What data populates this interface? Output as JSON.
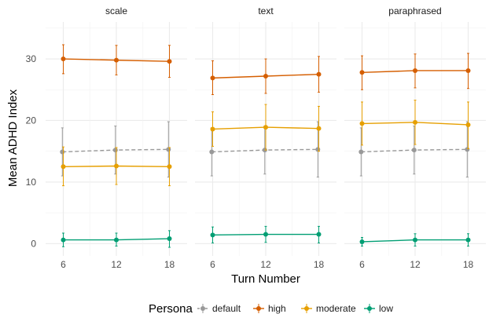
{
  "chart_data": {
    "type": "line",
    "xlabel": "Turn Number",
    "ylabel": "Mean ADHD Index",
    "x": [
      6,
      12,
      18
    ],
    "xlim": [
      4,
      20
    ],
    "ylim": [
      -2,
      36
    ],
    "y_ticks": [
      0,
      10,
      20,
      30
    ],
    "grid": true,
    "legend": {
      "title": "Persona",
      "position": "bottom",
      "entries": [
        {
          "name": "default",
          "color": "#999999",
          "dashed": true
        },
        {
          "name": "high",
          "color": "#D55E00",
          "dashed": false
        },
        {
          "name": "moderate",
          "color": "#E69F00",
          "dashed": false
        },
        {
          "name": "low",
          "color": "#009E73",
          "dashed": false
        }
      ]
    },
    "panels": [
      {
        "title": "scale",
        "series": [
          {
            "name": "default",
            "values": [
              14.9,
              15.2,
              15.3
            ],
            "err_low": [
              11.0,
              11.3,
              10.8
            ],
            "err_high": [
              18.8,
              19.1,
              19.8
            ]
          },
          {
            "name": "high",
            "values": [
              30.0,
              29.8,
              29.6
            ],
            "err_low": [
              27.6,
              27.4,
              27.0
            ],
            "err_high": [
              32.3,
              32.2,
              32.2
            ]
          },
          {
            "name": "moderate",
            "values": [
              12.5,
              12.6,
              12.5
            ],
            "err_low": [
              9.4,
              9.6,
              9.4
            ],
            "err_high": [
              15.7,
              15.6,
              15.6
            ]
          },
          {
            "name": "low",
            "values": [
              0.6,
              0.6,
              0.8
            ],
            "err_low": [
              -0.5,
              -0.4,
              -0.6
            ],
            "err_high": [
              1.7,
              1.7,
              2.1
            ]
          }
        ]
      },
      {
        "title": "text",
        "series": [
          {
            "name": "default",
            "values": [
              14.9,
              15.2,
              15.3
            ],
            "err_low": [
              11.0,
              11.3,
              10.8
            ],
            "err_high": [
              18.8,
              19.1,
              19.8
            ]
          },
          {
            "name": "high",
            "values": [
              26.9,
              27.2,
              27.5
            ],
            "err_low": [
              24.2,
              24.4,
              24.6
            ],
            "err_high": [
              29.7,
              30.0,
              30.4
            ]
          },
          {
            "name": "moderate",
            "values": [
              18.6,
              18.9,
              18.7
            ],
            "err_low": [
              15.8,
              15.2,
              15.0
            ],
            "err_high": [
              21.4,
              22.6,
              22.3
            ]
          },
          {
            "name": "low",
            "values": [
              1.4,
              1.5,
              1.5
            ],
            "err_low": [
              0.1,
              0.2,
              0.1
            ],
            "err_high": [
              2.7,
              2.8,
              2.8
            ]
          }
        ]
      },
      {
        "title": "paraphrased",
        "series": [
          {
            "name": "default",
            "values": [
              14.9,
              15.2,
              15.3
            ],
            "err_low": [
              11.0,
              11.3,
              10.8
            ],
            "err_high": [
              18.8,
              19.1,
              19.8
            ]
          },
          {
            "name": "high",
            "values": [
              27.8,
              28.1,
              28.1
            ],
            "err_low": [
              25.0,
              25.3,
              25.2
            ],
            "err_high": [
              30.5,
              30.8,
              30.9
            ]
          },
          {
            "name": "moderate",
            "values": [
              19.5,
              19.7,
              19.3
            ],
            "err_low": [
              16.0,
              16.1,
              15.4
            ],
            "err_high": [
              23.0,
              23.3,
              23.0
            ]
          },
          {
            "name": "low",
            "values": [
              0.3,
              0.6,
              0.6
            ],
            "err_low": [
              -0.4,
              -0.4,
              -0.4
            ],
            "err_high": [
              1.0,
              1.6,
              1.6
            ]
          }
        ]
      }
    ]
  }
}
